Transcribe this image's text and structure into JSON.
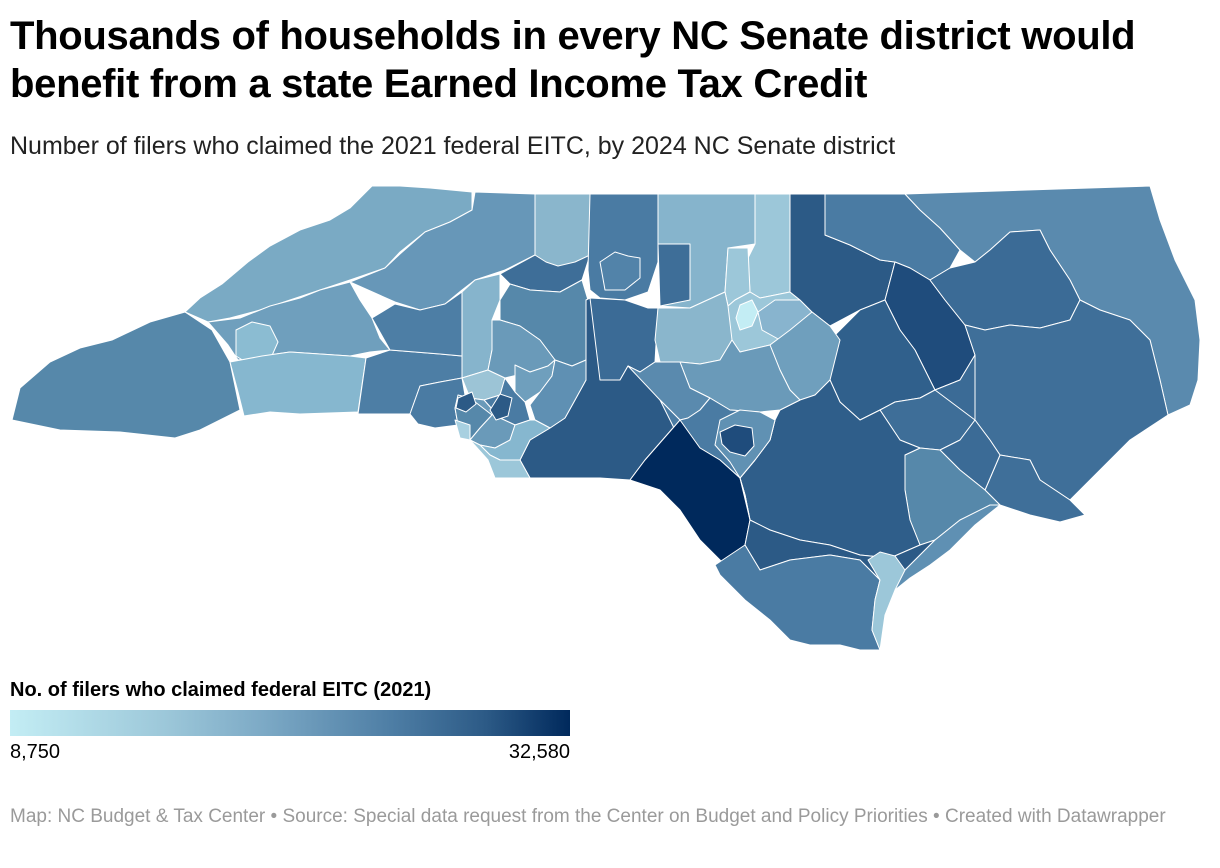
{
  "header": {
    "title": "Thousands of households in every NC Senate district would benefit from a state Earned Income Tax Credit",
    "subtitle": "Number of filers who claimed the 2021 federal EITC, by 2024 NC Senate district"
  },
  "legend": {
    "title": "No. of filers who claimed federal EITC (2021)",
    "min_label": "8,750",
    "max_label": "32,580",
    "min_value": 8750,
    "max_value": 32580,
    "colors": [
      "#c3edf4",
      "#9cc7d9",
      "#7daac6",
      "#4e7ea5",
      "#2c5a86",
      "#00295c"
    ]
  },
  "footer": {
    "map_credit": "Map: NC Budget & Tax Center",
    "source": "Source: Special data request from the Center on Budget and Policy Priorities",
    "created_with": "Created with Datawrapper",
    "separator": " • "
  },
  "map": {
    "region": "North Carolina",
    "districts": [
      {
        "key": "far-west",
        "color": "#5688aa"
      },
      {
        "key": "west-north",
        "color": "#7aaac4"
      },
      {
        "key": "west-ring",
        "color": "#6f9fbd"
      },
      {
        "key": "asheville-core",
        "color": "#8bbcd2"
      },
      {
        "key": "asheville-south",
        "color": "#86b7cf"
      },
      {
        "key": "blue-ridge",
        "color": "#6797b8"
      },
      {
        "key": "boone",
        "color": "#4d7ea5"
      },
      {
        "key": "rutherford",
        "color": "#4d7ea5"
      },
      {
        "key": "cleveland",
        "color": "#4a7ba3"
      },
      {
        "key": "north-foothills",
        "color": "#86b4cc"
      },
      {
        "key": "catawba",
        "color": "#9cc4d6"
      },
      {
        "key": "northwest",
        "color": "#3e6e98"
      },
      {
        "key": "surry",
        "color": "#8ab6cc"
      },
      {
        "key": "yadkin",
        "color": "#5688aa"
      },
      {
        "key": "iredell",
        "color": "#6a9ab9"
      },
      {
        "key": "forsyth-outer",
        "color": "#4a7ba3"
      },
      {
        "key": "winston-salem",
        "color": "#5283a9"
      },
      {
        "key": "rockingham",
        "color": "#3e6e98"
      },
      {
        "key": "greensboro",
        "color": "#86b4cc"
      },
      {
        "key": "alamance",
        "color": "#3b6b96"
      },
      {
        "key": "person-caswell",
        "color": "#9cc7d9"
      },
      {
        "key": "granville",
        "color": "#9cc7d9"
      },
      {
        "key": "durham",
        "color": "#8ab6cc"
      },
      {
        "key": "chatham-orange",
        "color": "#9cc7d9"
      },
      {
        "key": "wake-inner",
        "color": "#c3edf4"
      },
      {
        "key": "wake-east",
        "color": "#88b4ce"
      },
      {
        "key": "northeast-band",
        "color": "#2c5a86"
      },
      {
        "key": "halifax",
        "color": "#4a7ba3"
      },
      {
        "key": "outer-banks",
        "color": "#5a8aae"
      },
      {
        "key": "edgecombe",
        "color": "#1f4c7c"
      },
      {
        "key": "nash",
        "color": "#30608c"
      },
      {
        "key": "johnston",
        "color": "#6f9fbd"
      },
      {
        "key": "pitt",
        "color": "#3b6b96"
      },
      {
        "key": "craven",
        "color": "#3f6f99"
      },
      {
        "key": "carteret",
        "color": "#3f6f99"
      },
      {
        "key": "wayne",
        "color": "#3e6e98"
      },
      {
        "key": "duplin",
        "color": "#3b6b96"
      },
      {
        "key": "onslow",
        "color": "#5688aa"
      },
      {
        "key": "sampson",
        "color": "#2f5e8a"
      },
      {
        "key": "harnett",
        "color": "#6a9ab9"
      },
      {
        "key": "moore",
        "color": "#5a8aae"
      },
      {
        "key": "randolph",
        "color": "#2c5a86"
      },
      {
        "key": "davidson",
        "color": "#4a7ba3"
      },
      {
        "key": "rowan",
        "color": "#6f9fbd"
      },
      {
        "key": "cabarrus",
        "color": "#5f90b3"
      },
      {
        "key": "stanly",
        "color": "#4a7ba3"
      },
      {
        "key": "gaston",
        "color": "#5688aa"
      },
      {
        "key": "charlotte-1",
        "color": "#6a9ab9"
      },
      {
        "key": "charlotte-2",
        "color": "#86b7cf"
      },
      {
        "key": "charlotte-3",
        "color": "#9cc7d9"
      },
      {
        "key": "charlotte-4",
        "color": "#a8d0e0"
      },
      {
        "key": "union",
        "color": "#2c5a86"
      },
      {
        "key": "anson-richmond",
        "color": "#2c5a86"
      },
      {
        "key": "robeson",
        "color": "#00295c"
      },
      {
        "key": "fayetteville",
        "color": "#1f4c7c"
      },
      {
        "key": "cumberland-outer",
        "color": "#6091b3"
      },
      {
        "key": "bladen-columbus",
        "color": "#2c5a86"
      },
      {
        "key": "brunswick",
        "color": "#4a7ba3"
      },
      {
        "key": "pender",
        "color": "#5f90b3"
      },
      {
        "key": "wilmington",
        "color": "#9cc7d9"
      }
    ]
  }
}
